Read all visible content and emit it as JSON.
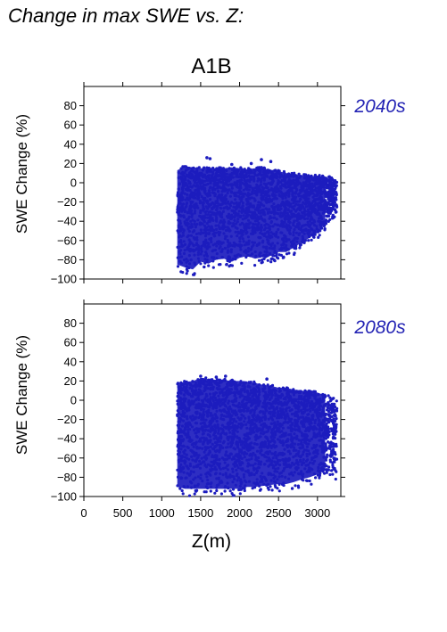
{
  "page": {
    "title": "Change in max SWE vs. Z:"
  },
  "colors": {
    "points": "#1c1cbe",
    "period_label": "#2323b4",
    "frame": "#000000"
  },
  "chart_data": [
    {
      "type": "scatter",
      "title": "A1B",
      "period": "2040s",
      "xlabel": "",
      "ylabel": "SWE Change (%)",
      "xlim": [
        0,
        3300
      ],
      "ylim": [
        -100,
        100
      ],
      "yticks": [
        -100,
        -80,
        -60,
        -40,
        -20,
        0,
        20,
        40,
        60,
        80
      ],
      "xticks": [
        0,
        500,
        1000,
        1500,
        2000,
        2500,
        3000
      ],
      "x_tick_labels_shown": false,
      "grid": false,
      "envelope": {
        "x": [
          1200,
          1300,
          1400,
          1500,
          1600,
          1700,
          1800,
          1900,
          2000,
          2100,
          2200,
          2300,
          2400,
          2500,
          2600,
          2700,
          2800,
          2900,
          3000,
          3100,
          3150,
          3250
        ],
        "y_max": [
          14,
          18,
          17,
          16,
          16,
          16,
          16,
          17,
          16,
          15,
          16,
          16,
          14,
          13,
          11,
          10,
          9,
          8,
          8,
          7,
          7,
          2
        ],
        "y_min": [
          -93,
          -96,
          -98,
          -90,
          -92,
          -88,
          -87,
          -90,
          -86,
          -84,
          -87,
          -85,
          -84,
          -80,
          -80,
          -75,
          -70,
          -65,
          -60,
          -50,
          -40,
          -35
        ]
      },
      "outliers": [
        {
          "x": 1580,
          "y": 26
        },
        {
          "x": 1620,
          "y": 25
        },
        {
          "x": 2280,
          "y": 24
        },
        {
          "x": 2150,
          "y": 20
        },
        {
          "x": 2400,
          "y": 22
        },
        {
          "x": 1900,
          "y": 19
        }
      ]
    },
    {
      "type": "scatter",
      "title": "",
      "period": "2080s",
      "xlabel": "Z(m)",
      "ylabel": "SWE Change (%)",
      "xlim": [
        0,
        3300
      ],
      "ylim": [
        -100,
        100
      ],
      "yticks": [
        -100,
        -80,
        -60,
        -40,
        -20,
        0,
        20,
        40,
        60,
        80
      ],
      "xticks": [
        0,
        500,
        1000,
        1500,
        2000,
        2500,
        3000
      ],
      "x_tick_labels_shown": true,
      "grid": false,
      "envelope": {
        "x": [
          1200,
          1300,
          1400,
          1500,
          1600,
          1700,
          1800,
          1900,
          2000,
          2100,
          2200,
          2300,
          2400,
          2500,
          2600,
          2700,
          2800,
          2900,
          3000,
          3100,
          3150,
          3250
        ],
        "y_max": [
          19,
          20,
          21,
          24,
          23,
          22,
          22,
          21,
          21,
          20,
          19,
          17,
          16,
          14,
          14,
          12,
          11,
          10,
          9,
          6,
          5,
          0
        ],
        "y_min": [
          -98,
          -100,
          -100,
          -100,
          -100,
          -100,
          -100,
          -100,
          -100,
          -98,
          -98,
          -97,
          -96,
          -95,
          -95,
          -93,
          -90,
          -88,
          -85,
          -80,
          -78,
          -85
        ]
      },
      "outliers": [
        {
          "x": 1500,
          "y": 25
        },
        {
          "x": 1700,
          "y": 24
        },
        {
          "x": 1820,
          "y": 25
        },
        {
          "x": 2350,
          "y": 22
        }
      ]
    }
  ]
}
